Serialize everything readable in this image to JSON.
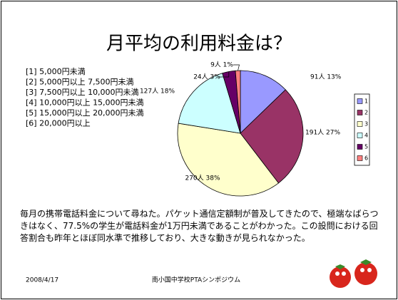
{
  "chart_data": {
    "type": "pie",
    "title": "月平均の利用料金は？",
    "categories": [
      "1",
      "2",
      "3",
      "4",
      "5",
      "6"
    ],
    "values": [
      91,
      191,
      270,
      127,
      24,
      9
    ],
    "value_labels": [
      "91人 13%",
      "191人 27%",
      "270人 38%",
      "127人 18%",
      "24人 3%",
      "9人 1%"
    ],
    "colors": [
      "#9999ff",
      "#993366",
      "#ffffcc",
      "#ccffff",
      "#660066",
      "#ff8080"
    ],
    "category_descriptions": [
      "[1] 5,000円未満",
      "[2] 5,000円以上 7,500円未満",
      "[3] 7,500円以上 10,000円未満",
      "[4] 10,000円以上 15,000円未満",
      "[5] 15,000円以上 20,000円未満",
      "[6] 20,000円以上"
    ],
    "legend": "right"
  },
  "body": "毎月の携帯電話料金について尋ねた。パケット通信定額制が普及してきたので、極端なばらつきはなく、77.5%の学生が電話料金が1万円未満であることがわかった。この設問における回答割合も昨年とほぼ同水準で推移しており、大きな動きが見られなかった。",
  "footer": {
    "date": "2008/4/17",
    "event": "南小国中学校PTAシンポジウム"
  }
}
